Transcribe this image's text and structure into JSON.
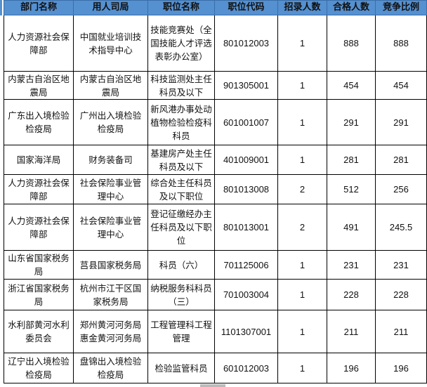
{
  "colors": {
    "header_bg": "#5590d0",
    "border": "#000000"
  },
  "table": {
    "headers": [
      "部门名称",
      "用人司局",
      "职位名称",
      "职位代码",
      "招录人数",
      "合格人数",
      "竞争比例"
    ],
    "rows": [
      [
        "人力资源社会保障部",
        "中国就业培训技术指导中心",
        "技能竞赛处（全国技能人才评选表彰办公室）",
        "801012003",
        "1",
        "888",
        "888"
      ],
      [
        "内蒙古自治区地震局",
        "内蒙古自治区地震局",
        "科技监测处主任科员及以下",
        "901305001",
        "1",
        "454",
        "454"
      ],
      [
        "广东出入境检验检疫局",
        "广州出入境检验检疫局",
        "新风港办事处动植物检验检疫科科员",
        "601001007",
        "1",
        "291",
        "291"
      ],
      [
        "国家海洋局",
        "财务装备司",
        "基建房产处主任科员及以下",
        "401009001",
        "1",
        "281",
        "281"
      ],
      [
        "人力资源社会保障部",
        "社会保险事业管理中心",
        "综合处主任科员及以下职位",
        "801013008",
        "2",
        "512",
        "256"
      ],
      [
        "人力资源社会保障部",
        "社会保险事业管理中心",
        "登记征缴经办主任科员及以下职位",
        "801013001",
        "2",
        "491",
        "245.5"
      ],
      [
        "山东省国家税务局",
        "莒县国家税务局",
        "科员（六）",
        "701125006",
        "1",
        "231",
        "231"
      ],
      [
        "浙江省国家税务局",
        "杭州市江干区国家税务局",
        "纳税服务科科员（三）",
        "701003004",
        "1",
        "228",
        "228"
      ],
      [
        "水利部黄河水利委员会",
        "郑州黄河河务局惠金黄河河务局",
        "工程管理科工程管理",
        "1101307001",
        "1",
        "211",
        "211"
      ],
      [
        "辽宁出入境检验检疫局",
        "盘锦出入境检验检疫局",
        "检验监管科员",
        "601012003",
        "1",
        "196",
        "196"
      ]
    ]
  }
}
